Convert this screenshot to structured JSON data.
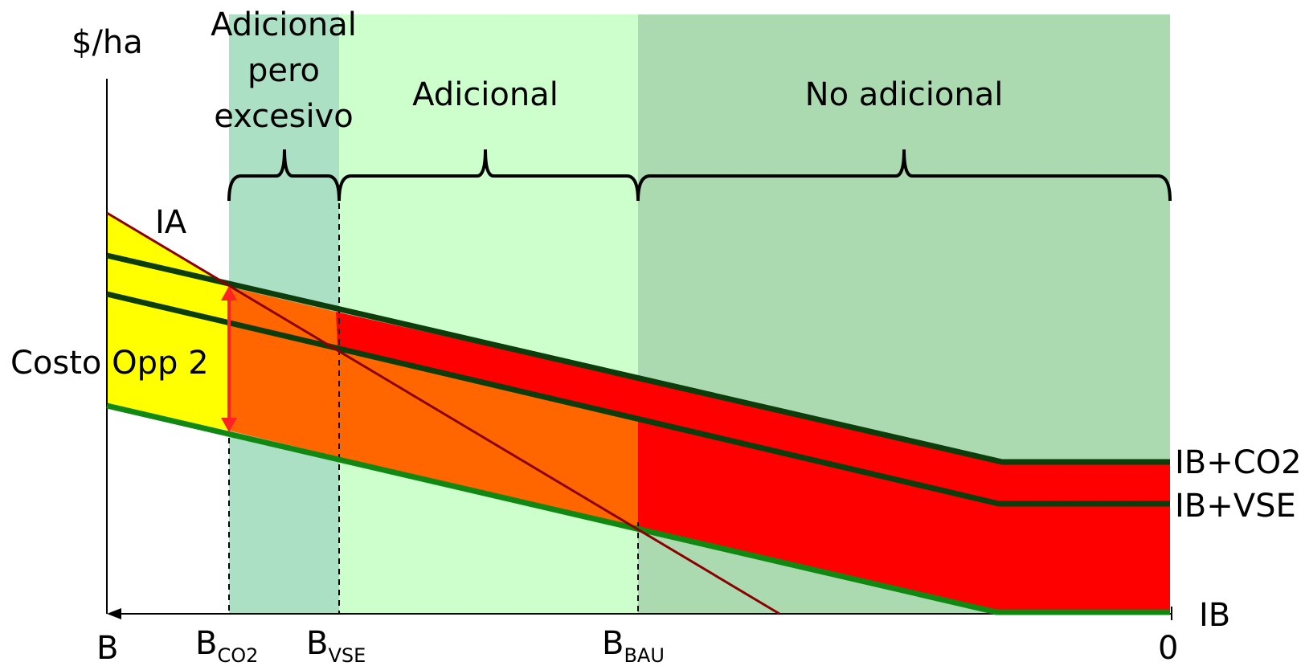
{
  "y_axis_label": "$/ha",
  "zones": {
    "zone1": [
      "Adicional",
      "pero",
      "excesivo"
    ],
    "zone2": "Adicional",
    "zone3": "No adicional"
  },
  "lines": {
    "ia": "IA",
    "ib_co2": "IB+CO2",
    "ib_vse": "IB+VSE",
    "ib": "IB"
  },
  "annotation": "Costo Opp 2",
  "x_axis": {
    "left_label": "B",
    "right_label": "0",
    "co2": {
      "main": "B",
      "sub": "CO2"
    },
    "vse": {
      "main": "B",
      "sub": "VSE"
    },
    "bau": {
      "main": "B",
      "sub": "BAU"
    }
  },
  "colors": {
    "zone1_bg": "#ace0c5",
    "zone2_bg": "#ccffcc",
    "zone3_bg": "#acdab0",
    "yellow": "#ffff00",
    "orange": "#ff6600",
    "red": "#ff0000",
    "dark_line": "#0d3d0d",
    "green_line": "#118811",
    "ia_line": "#8b0000",
    "arrow": "#ff2222"
  }
}
